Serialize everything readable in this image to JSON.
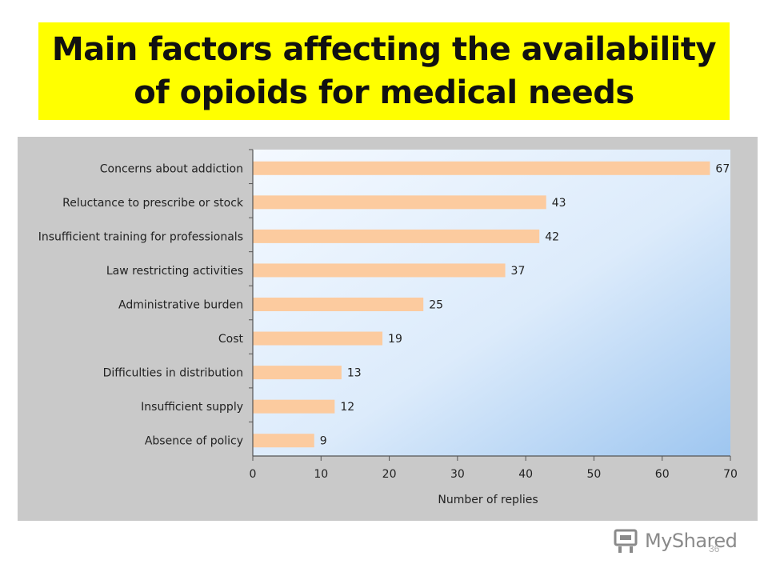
{
  "slide": {
    "title_line1": "Main factors affecting the availability",
    "title_line2": "of opioids for medical needs",
    "title_bg": "#ffff00",
    "page_number": "36"
  },
  "watermark": {
    "text": "MyShared",
    "icon": "mortarboard-icon"
  },
  "chart_data": {
    "type": "bar",
    "orientation": "horizontal",
    "title": "",
    "categories": [
      "Concerns about addiction",
      "Reluctance to prescribe or stock",
      "Insufficient training for professionals",
      "Law restricting activities",
      "Administrative burden",
      "Cost",
      "Difficulties in distribution",
      "Insufficient supply",
      "Absence of policy"
    ],
    "values": [
      67,
      43,
      42,
      37,
      25,
      19,
      13,
      12,
      9
    ],
    "xlabel": "Number of replies",
    "ylabel": "",
    "xlim": [
      0,
      70
    ],
    "xticks": [
      0,
      10,
      20,
      30,
      40,
      50,
      60,
      70
    ],
    "bar_color": "#fccb9f",
    "show_data_labels": true,
    "grid": false
  }
}
